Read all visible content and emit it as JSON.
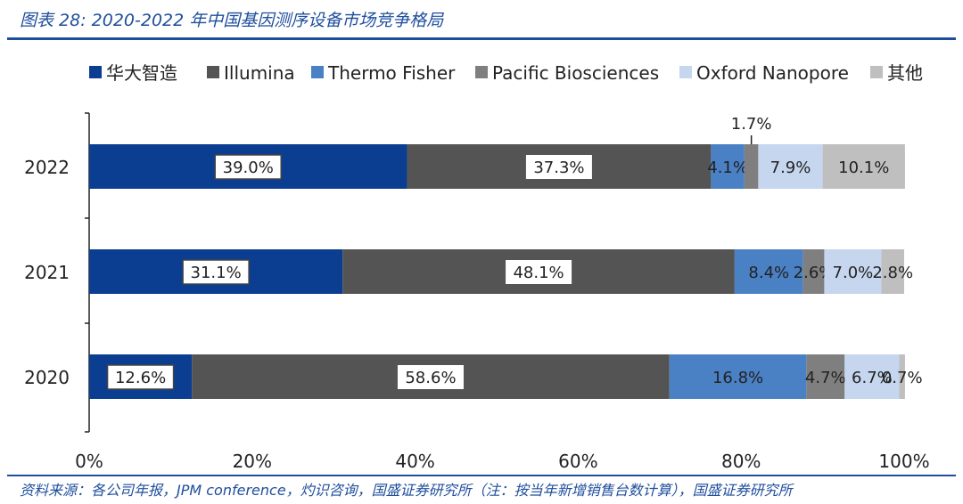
{
  "title": "图表 28:  2020-2022 年中国基因测序设备市场竞争格局",
  "source": "资料来源：各公司年报，JPM conference，灼识咨询，国盛证券研究所（注：按当年新增销售台数计算），国盛证券研究所",
  "chart_data": {
    "type": "bar",
    "orientation": "horizontal",
    "stacked": "percent",
    "categories": [
      "2022",
      "2021",
      "2020"
    ],
    "series": [
      {
        "name": "华大智造",
        "color": "#0b3d91",
        "values": [
          39.0,
          31.1,
          12.6
        ],
        "labels": [
          "39.0%",
          "31.1%",
          "12.6%"
        ]
      },
      {
        "name": "Illumina",
        "color": "#545454",
        "values": [
          37.3,
          48.1,
          58.6
        ],
        "labels": [
          "37.3%",
          "48.1%",
          "58.6%"
        ]
      },
      {
        "name": "Thermo Fisher",
        "color": "#4a80c4",
        "values": [
          4.1,
          8.4,
          16.8
        ],
        "labels": [
          "4.1%",
          "8.4%",
          "16.8%"
        ]
      },
      {
        "name": "Pacific Biosciences",
        "color": "#7f7f7f",
        "values": [
          1.7,
          2.6,
          4.7
        ],
        "labels": [
          "1.7%",
          "2.6%",
          "4.7%"
        ]
      },
      {
        "name": "Oxford Nanopore",
        "color": "#c5d6ee",
        "values": [
          7.9,
          7.0,
          6.7
        ],
        "labels": [
          "7.9%",
          "7.0%",
          "6.7%"
        ]
      },
      {
        "name": "其他",
        "color": "#bfbfbf",
        "values": [
          10.1,
          2.8,
          0.7
        ],
        "labels": [
          "10.1%",
          "2.8%",
          "0.7%"
        ]
      }
    ],
    "xlim": [
      0,
      100
    ],
    "xticks": [
      "0%",
      "20%",
      "40%",
      "60%",
      "80%",
      "100%"
    ],
    "legend": "top",
    "grid": false
  }
}
